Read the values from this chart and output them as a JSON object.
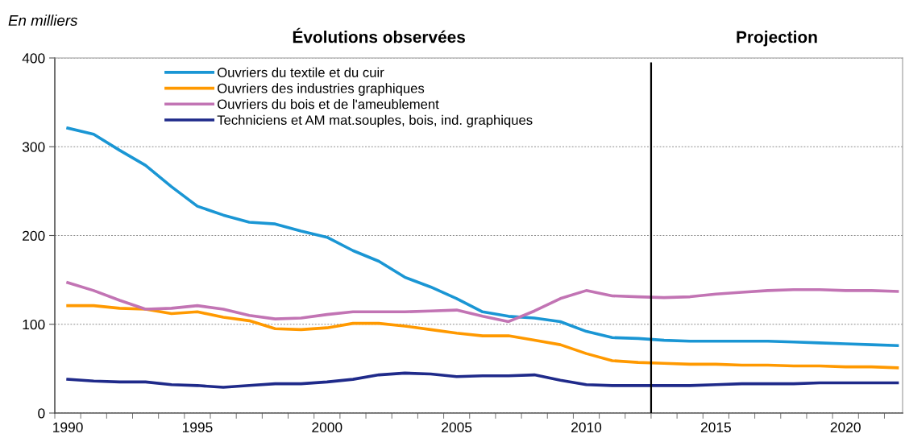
{
  "chart_data": {
    "type": "line",
    "ylabel": "En milliers",
    "annotations": [
      "Évolutions observées",
      "Projection"
    ],
    "x": [
      1990,
      1991,
      1992,
      1993,
      1994,
      1995,
      1996,
      1997,
      1998,
      1999,
      2000,
      2001,
      2002,
      2003,
      2004,
      2005,
      2006,
      2007,
      2008,
      2009,
      2010,
      2011,
      2012,
      2013,
      2014,
      2015,
      2016,
      2017,
      2018,
      2019,
      2020,
      2021,
      2022
    ],
    "series": [
      {
        "name": "Ouvriers du textile et du cuir",
        "color": "#1a96d4",
        "values": [
          321,
          314,
          296,
          279,
          255,
          233,
          223,
          215,
          213,
          205,
          198,
          183,
          171,
          153,
          142,
          129,
          114,
          109,
          107,
          103,
          92,
          85,
          84,
          82,
          81,
          81,
          81,
          81,
          80,
          79,
          78,
          77,
          76
        ]
      },
      {
        "name": "Ouvriers des industries graphiques",
        "color": "#ff9900",
        "values": [
          121,
          121,
          118,
          117,
          112,
          114,
          108,
          104,
          95,
          94,
          96,
          101,
          101,
          98,
          94,
          90,
          87,
          87,
          82,
          77,
          67,
          59,
          57,
          56,
          55,
          55,
          54,
          54,
          53,
          53,
          52,
          52,
          51
        ]
      },
      {
        "name": "Ouvriers du bois et de l'ameublement",
        "color": "#c274b4",
        "values": [
          147,
          138,
          127,
          117,
          118,
          121,
          117,
          110,
          106,
          107,
          111,
          114,
          114,
          114,
          115,
          116,
          109,
          103,
          115,
          129,
          138,
          132,
          131,
          130,
          131,
          134,
          136,
          138,
          139,
          139,
          138,
          138,
          137
        ]
      },
      {
        "name": "Techniciens et AM mat.souples, bois, ind. graphiques",
        "color": "#1f2a8a",
        "values": [
          38,
          36,
          35,
          35,
          32,
          31,
          29,
          31,
          33,
          33,
          35,
          38,
          43,
          45,
          44,
          41,
          42,
          42,
          43,
          37,
          32,
          31,
          31,
          31,
          31,
          32,
          33,
          33,
          33,
          34,
          34,
          34,
          34
        ]
      }
    ],
    "xlim": [
      1989.5,
      2022.2
    ],
    "xticks": [
      1990,
      1995,
      2000,
      2005,
      2010,
      2015,
      2020,
      {
        "value": 1989.5,
        "label": null
      },
      {
        "value": 1990.5,
        "label": null
      },
      {
        "value": 1991.5,
        "label": null
      },
      {
        "value": 1992.5,
        "label": null
      },
      {
        "value": 1993.5,
        "label": null
      },
      {
        "value": 1994.5,
        "label": null
      },
      {
        "value": 1995.5,
        "label": null
      },
      {
        "value": 1996.5,
        "label": null
      },
      {
        "value": 1997.5,
        "label": null
      },
      {
        "value": 1998.5,
        "label": null
      },
      {
        "value": 1999.5,
        "label": null
      },
      {
        "value": 2000.5,
        "label": null
      },
      {
        "value": 2001.5,
        "label": null
      },
      {
        "value": 2002.5,
        "label": null
      },
      {
        "value": 2003.5,
        "label": null
      },
      {
        "value": 2004.5,
        "label": null
      },
      {
        "value": 2005.5,
        "label": null
      },
      {
        "value": 2006.5,
        "label": null
      },
      {
        "value": 2007.5,
        "label": null
      },
      {
        "value": 2008.5,
        "label": null
      },
      {
        "value": 2009.5,
        "label": null
      },
      {
        "value": 2010.5,
        "label": null
      },
      {
        "value": 2011.5,
        "label": null
      },
      {
        "value": 2012.5,
        "label": null
      },
      {
        "value": 2013.5,
        "label": null
      },
      {
        "value": 2014.5,
        "label": null
      },
      {
        "value": 2015.5,
        "label": null
      },
      {
        "value": 2016.5,
        "label": null
      },
      {
        "value": 2017.5,
        "label": null
      },
      {
        "value": 2018.5,
        "label": null
      },
      {
        "value": 2019.5,
        "label": null
      },
      {
        "value": 2020.5,
        "label": null
      },
      {
        "value": 2021.5,
        "label": null
      }
    ],
    "ylim": [
      0,
      400
    ],
    "yticks": [
      0,
      100,
      200,
      300,
      400
    ],
    "ref_lines": [
      {
        "axis": "x",
        "value": 2012.5,
        "color": "#000000"
      }
    ],
    "grid": "y",
    "legend": "top",
    "marker": "none",
    "line_style": "solid"
  }
}
